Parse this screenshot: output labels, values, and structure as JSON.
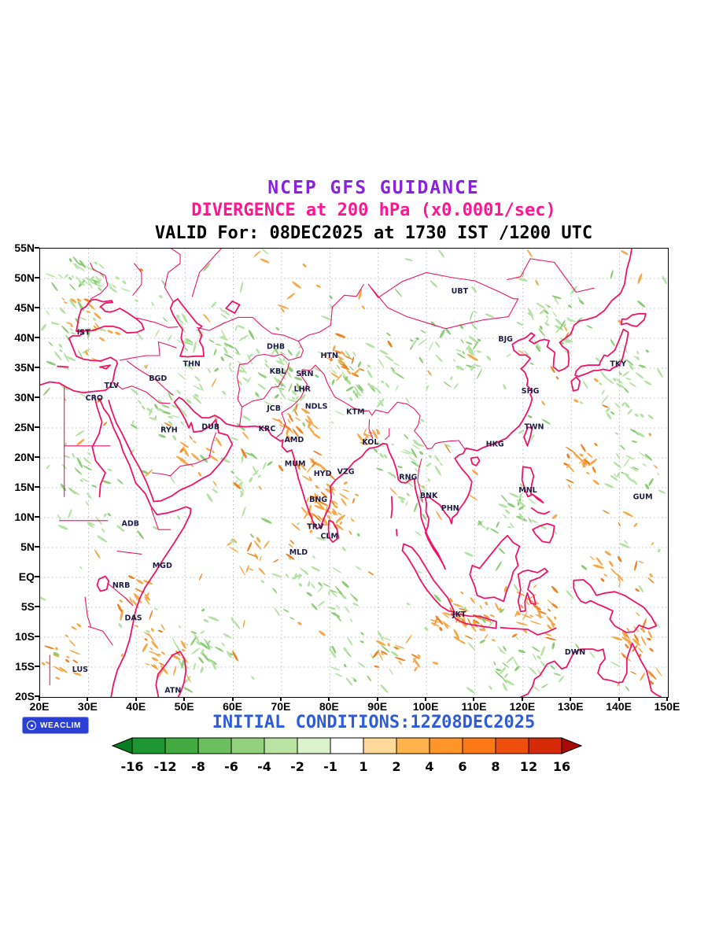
{
  "header": {
    "title": "NCEP GFS GUIDANCE",
    "subtitle": "DIVERGENCE at 200 hPa (x0.0001/sec)",
    "valid_line": "VALID For: 08DEC2025 at 1730 IST /1200 UTC"
  },
  "footer": {
    "initial_conditions": "INITIAL CONDITIONS:12Z08DEC2025",
    "logo_text": "WEACLIM"
  },
  "colors": {
    "title": "#8822dd",
    "subtitle": "#ff1493",
    "valid": "#000000",
    "footer_text": "#2e5bd8",
    "coastline": "#ee1568",
    "gridline": "#aaaaaa",
    "station_label": "#1d1d46",
    "logo_bg": "#2b3fd4",
    "shade_green_light": "#b5e2a5",
    "shade_green_dark": "#8fcc7a",
    "shade_orange_light": "#f6a94a",
    "shade_orange_dark": "#ee8324"
  },
  "map": {
    "lat_ticks": [
      {
        "label": "55N",
        "deg": 55
      },
      {
        "label": "50N",
        "deg": 50
      },
      {
        "label": "45N",
        "deg": 45
      },
      {
        "label": "40N",
        "deg": 40
      },
      {
        "label": "35N",
        "deg": 35
      },
      {
        "label": "30N",
        "deg": 30
      },
      {
        "label": "25N",
        "deg": 25
      },
      {
        "label": "20N",
        "deg": 20
      },
      {
        "label": "15N",
        "deg": 15
      },
      {
        "label": "10N",
        "deg": 10
      },
      {
        "label": "5N",
        "deg": 5
      },
      {
        "label": "EQ",
        "deg": 0
      },
      {
        "label": "5S",
        "deg": -5
      },
      {
        "label": "10S",
        "deg": -10
      },
      {
        "label": "15S",
        "deg": -15
      },
      {
        "label": "20S",
        "deg": -20
      }
    ],
    "lon_ticks": [
      {
        "label": "20E",
        "deg": 20
      },
      {
        "label": "30E",
        "deg": 30
      },
      {
        "label": "40E",
        "deg": 40
      },
      {
        "label": "50E",
        "deg": 50
      },
      {
        "label": "60E",
        "deg": 60
      },
      {
        "label": "70E",
        "deg": 70
      },
      {
        "label": "80E",
        "deg": 80
      },
      {
        "label": "90E",
        "deg": 90
      },
      {
        "label": "100E",
        "deg": 100
      },
      {
        "label": "110E",
        "deg": 110
      },
      {
        "label": "120E",
        "deg": 120
      },
      {
        "label": "130E",
        "deg": 130
      },
      {
        "label": "140E",
        "deg": 140
      },
      {
        "label": "150E",
        "deg": 150
      }
    ],
    "stations": [
      {
        "code": "IST",
        "lon": 29.0,
        "lat": 41.0
      },
      {
        "code": "TLV",
        "lon": 34.8,
        "lat": 32.1
      },
      {
        "code": "CRO",
        "lon": 31.2,
        "lat": 30.0
      },
      {
        "code": "BGD",
        "lon": 44.4,
        "lat": 33.3
      },
      {
        "code": "THN",
        "lon": 51.4,
        "lat": 35.7
      },
      {
        "code": "RYH",
        "lon": 46.7,
        "lat": 24.7
      },
      {
        "code": "DUB",
        "lon": 55.3,
        "lat": 25.2
      },
      {
        "code": "DHB",
        "lon": 68.8,
        "lat": 38.6
      },
      {
        "code": "KBL",
        "lon": 69.2,
        "lat": 34.5
      },
      {
        "code": "SRN",
        "lon": 74.8,
        "lat": 34.1
      },
      {
        "code": "HTN",
        "lon": 79.9,
        "lat": 37.1
      },
      {
        "code": "LHR",
        "lon": 74.3,
        "lat": 31.5
      },
      {
        "code": "JCB",
        "lon": 68.4,
        "lat": 28.3
      },
      {
        "code": "NDLS",
        "lon": 77.2,
        "lat": 28.6
      },
      {
        "code": "KRC",
        "lon": 67.0,
        "lat": 24.9
      },
      {
        "code": "AMD",
        "lon": 72.6,
        "lat": 23.0
      },
      {
        "code": "KTM",
        "lon": 85.3,
        "lat": 27.7
      },
      {
        "code": "KOL",
        "lon": 88.4,
        "lat": 22.6
      },
      {
        "code": "MUM",
        "lon": 72.8,
        "lat": 19.0
      },
      {
        "code": "HYD",
        "lon": 78.5,
        "lat": 17.4
      },
      {
        "code": "VZG",
        "lon": 83.3,
        "lat": 17.7
      },
      {
        "code": "RNG",
        "lon": 96.2,
        "lat": 16.8
      },
      {
        "code": "BNG",
        "lon": 77.6,
        "lat": 13.0
      },
      {
        "code": "BNK",
        "lon": 100.5,
        "lat": 13.7
      },
      {
        "code": "PHN",
        "lon": 104.9,
        "lat": 11.6
      },
      {
        "code": "TRV",
        "lon": 77.0,
        "lat": 8.5
      },
      {
        "code": "CLM",
        "lon": 79.9,
        "lat": 6.9
      },
      {
        "code": "MLD",
        "lon": 73.5,
        "lat": 4.2
      },
      {
        "code": "ADB",
        "lon": 38.7,
        "lat": 9.0
      },
      {
        "code": "MGD",
        "lon": 45.3,
        "lat": 2.0
      },
      {
        "code": "NRB",
        "lon": 36.8,
        "lat": -1.3
      },
      {
        "code": "DAS",
        "lon": 39.3,
        "lat": -6.8
      },
      {
        "code": "LUS",
        "lon": 28.3,
        "lat": -15.4
      },
      {
        "code": "ATN",
        "lon": 47.5,
        "lat": -18.9
      },
      {
        "code": "JKT",
        "lon": 106.8,
        "lat": -6.2
      },
      {
        "code": "UBT",
        "lon": 106.9,
        "lat": 47.9
      },
      {
        "code": "BJG",
        "lon": 116.4,
        "lat": 39.9
      },
      {
        "code": "SHG",
        "lon": 121.5,
        "lat": 31.2
      },
      {
        "code": "TWN",
        "lon": 122.3,
        "lat": 25.2
      },
      {
        "code": "HKG",
        "lon": 114.2,
        "lat": 22.3
      },
      {
        "code": "TKY",
        "lon": 139.7,
        "lat": 35.7
      },
      {
        "code": "MNL",
        "lon": 121.0,
        "lat": 14.6
      },
      {
        "code": "GUM",
        "lon": 144.8,
        "lat": 13.5
      },
      {
        "code": "DWN",
        "lon": 130.8,
        "lat": -12.5
      }
    ]
  },
  "colorbar": {
    "labels": [
      "-16",
      "-12",
      "-8",
      "-6",
      "-4",
      "-2",
      "-1",
      "1",
      "2",
      "4",
      "6",
      "8",
      "12",
      "16"
    ],
    "colors": [
      "#087c20",
      "#1e9632",
      "#41ab41",
      "#6cbf5e",
      "#93d27c",
      "#b9e3a0",
      "#dcf2cd",
      "#ffffff",
      "#ffd999",
      "#ffb34d",
      "#ff9429",
      "#fb7a16",
      "#ee4f0e",
      "#d42a08",
      "#aa0a05"
    ]
  },
  "chart_data": {
    "type": "heatmap",
    "title": "NCEP GFS GUIDANCE",
    "subtitle": "DIVERGENCE at 200 hPa (x0.0001/sec)",
    "valid": "08DEC2025 at 1730 IST /1200 UTC",
    "initialization": "12Z08DEC2025",
    "variable": "divergence",
    "level": "200 hPa",
    "units": "x0.0001/sec",
    "lon_range_deg": [
      20,
      150
    ],
    "lat_range_deg": [
      -20,
      55
    ],
    "lon_ticks": [
      "20E",
      "30E",
      "40E",
      "50E",
      "60E",
      "70E",
      "80E",
      "90E",
      "100E",
      "110E",
      "120E",
      "130E",
      "140E",
      "150E"
    ],
    "lat_ticks": [
      "55N",
      "50N",
      "45N",
      "40N",
      "35N",
      "30N",
      "25N",
      "20N",
      "15N",
      "10N",
      "5N",
      "EQ",
      "5S",
      "10S",
      "15S",
      "20S"
    ],
    "grid": true,
    "legend_position": "bottom",
    "colorbar_levels": [
      -16,
      -12,
      -8,
      -6,
      -4,
      -2,
      -1,
      1,
      2,
      4,
      6,
      8,
      12,
      16
    ],
    "background_sprinkle": {
      "green": 160,
      "orange": 90
    },
    "shaded_regions": [
      {
        "color": "green",
        "lon": 30,
        "lat": 50,
        "dlon": 9,
        "dlat": 5,
        "n": 40
      },
      {
        "color": "green",
        "lon": 26,
        "lat": 40,
        "dlon": 6,
        "dlat": 6,
        "n": 25
      },
      {
        "color": "green",
        "lon": 45,
        "lat": 29,
        "dlon": 8,
        "dlat": 6,
        "n": 30
      },
      {
        "color": "green",
        "lon": 56,
        "lat": 38,
        "dlon": 11,
        "dlat": 8,
        "n": 55
      },
      {
        "color": "green",
        "lon": 70,
        "lat": 33,
        "dlon": 8,
        "dlat": 6,
        "n": 45
      },
      {
        "color": "green",
        "lon": 88,
        "lat": 33,
        "dlon": 10,
        "dlat": 6,
        "n": 40
      },
      {
        "color": "green",
        "lon": 108,
        "lat": 38,
        "dlon": 12,
        "dlat": 8,
        "n": 45
      },
      {
        "color": "green",
        "lon": 127,
        "lat": 42,
        "dlon": 9,
        "dlat": 6,
        "n": 35
      },
      {
        "color": "green",
        "lon": 140,
        "lat": 32,
        "dlon": 8,
        "dlat": 7,
        "n": 30
      },
      {
        "color": "green",
        "lon": 97,
        "lat": 18,
        "dlon": 8,
        "dlat": 7,
        "n": 35
      },
      {
        "color": "green",
        "lon": 75,
        "lat": -2,
        "dlon": 12,
        "dlat": 6,
        "n": 40
      },
      {
        "color": "green",
        "lon": 55,
        "lat": -12,
        "dlon": 10,
        "dlat": 6,
        "n": 35
      },
      {
        "color": "green",
        "lon": 28,
        "lat": 14,
        "dlon": 8,
        "dlat": 8,
        "n": 25
      },
      {
        "color": "green",
        "lon": 120,
        "lat": -15,
        "dlon": 12,
        "dlat": 5,
        "n": 30
      },
      {
        "color": "green",
        "lon": 88,
        "lat": -13,
        "dlon": 9,
        "dlat": 5,
        "n": 25
      },
      {
        "color": "green",
        "lon": 143,
        "lat": 20,
        "dlon": 7,
        "dlat": 9,
        "n": 25
      },
      {
        "color": "green",
        "lon": 62,
        "lat": 17,
        "dlon": 7,
        "dlat": 5,
        "n": 20
      },
      {
        "color": "green",
        "lon": 117,
        "lat": 10,
        "dlon": 8,
        "dlat": 7,
        "n": 25
      },
      {
        "color": "orange",
        "lon": 80,
        "lat": 11,
        "dlon": 6,
        "dlat": 6,
        "n": 50
      },
      {
        "color": "orange",
        "lon": 73,
        "lat": 26,
        "dlon": 5,
        "dlat": 4,
        "n": 22
      },
      {
        "color": "orange",
        "lon": 83,
        "lat": 36,
        "dlon": 5,
        "dlat": 3,
        "n": 18
      },
      {
        "color": "orange",
        "lon": 108,
        "lat": -7,
        "dlon": 10,
        "dlat": 4,
        "n": 45
      },
      {
        "color": "orange",
        "lon": 122,
        "lat": -6,
        "dlon": 7,
        "dlat": 5,
        "n": 32
      },
      {
        "color": "orange",
        "lon": 144,
        "lat": -11,
        "dlon": 6,
        "dlat": 7,
        "n": 30
      },
      {
        "color": "orange",
        "lon": 132,
        "lat": 19,
        "dlon": 4,
        "dlat": 4,
        "n": 20
      },
      {
        "color": "orange",
        "lon": 45,
        "lat": -13,
        "dlon": 6,
        "dlat": 6,
        "n": 25
      },
      {
        "color": "orange",
        "lon": 40,
        "lat": -4,
        "dlon": 5,
        "dlat": 5,
        "n": 18
      },
      {
        "color": "orange",
        "lon": 52,
        "lat": 20,
        "dlon": 6,
        "dlat": 5,
        "n": 16
      },
      {
        "color": "orange",
        "lon": 30,
        "lat": 44,
        "dlon": 7,
        "dlat": 5,
        "n": 16
      },
      {
        "color": "orange",
        "lon": 95,
        "lat": -13,
        "dlon": 8,
        "dlat": 4,
        "n": 18
      },
      {
        "color": "orange",
        "lon": 65,
        "lat": 4,
        "dlon": 8,
        "dlat": 5,
        "n": 16
      },
      {
        "color": "orange",
        "lon": 140,
        "lat": 4,
        "dlon": 8,
        "dlat": 8,
        "n": 18
      },
      {
        "color": "orange",
        "lon": 25,
        "lat": -13,
        "dlon": 5,
        "dlat": 6,
        "n": 14
      },
      {
        "color": "orange",
        "lon": 88,
        "lat": 24,
        "dlon": 4,
        "dlat": 3,
        "n": 12
      },
      {
        "color": "orange",
        "lon": 76,
        "lat": 19,
        "dlon": 3,
        "dlat": 3,
        "n": 12
      }
    ]
  }
}
